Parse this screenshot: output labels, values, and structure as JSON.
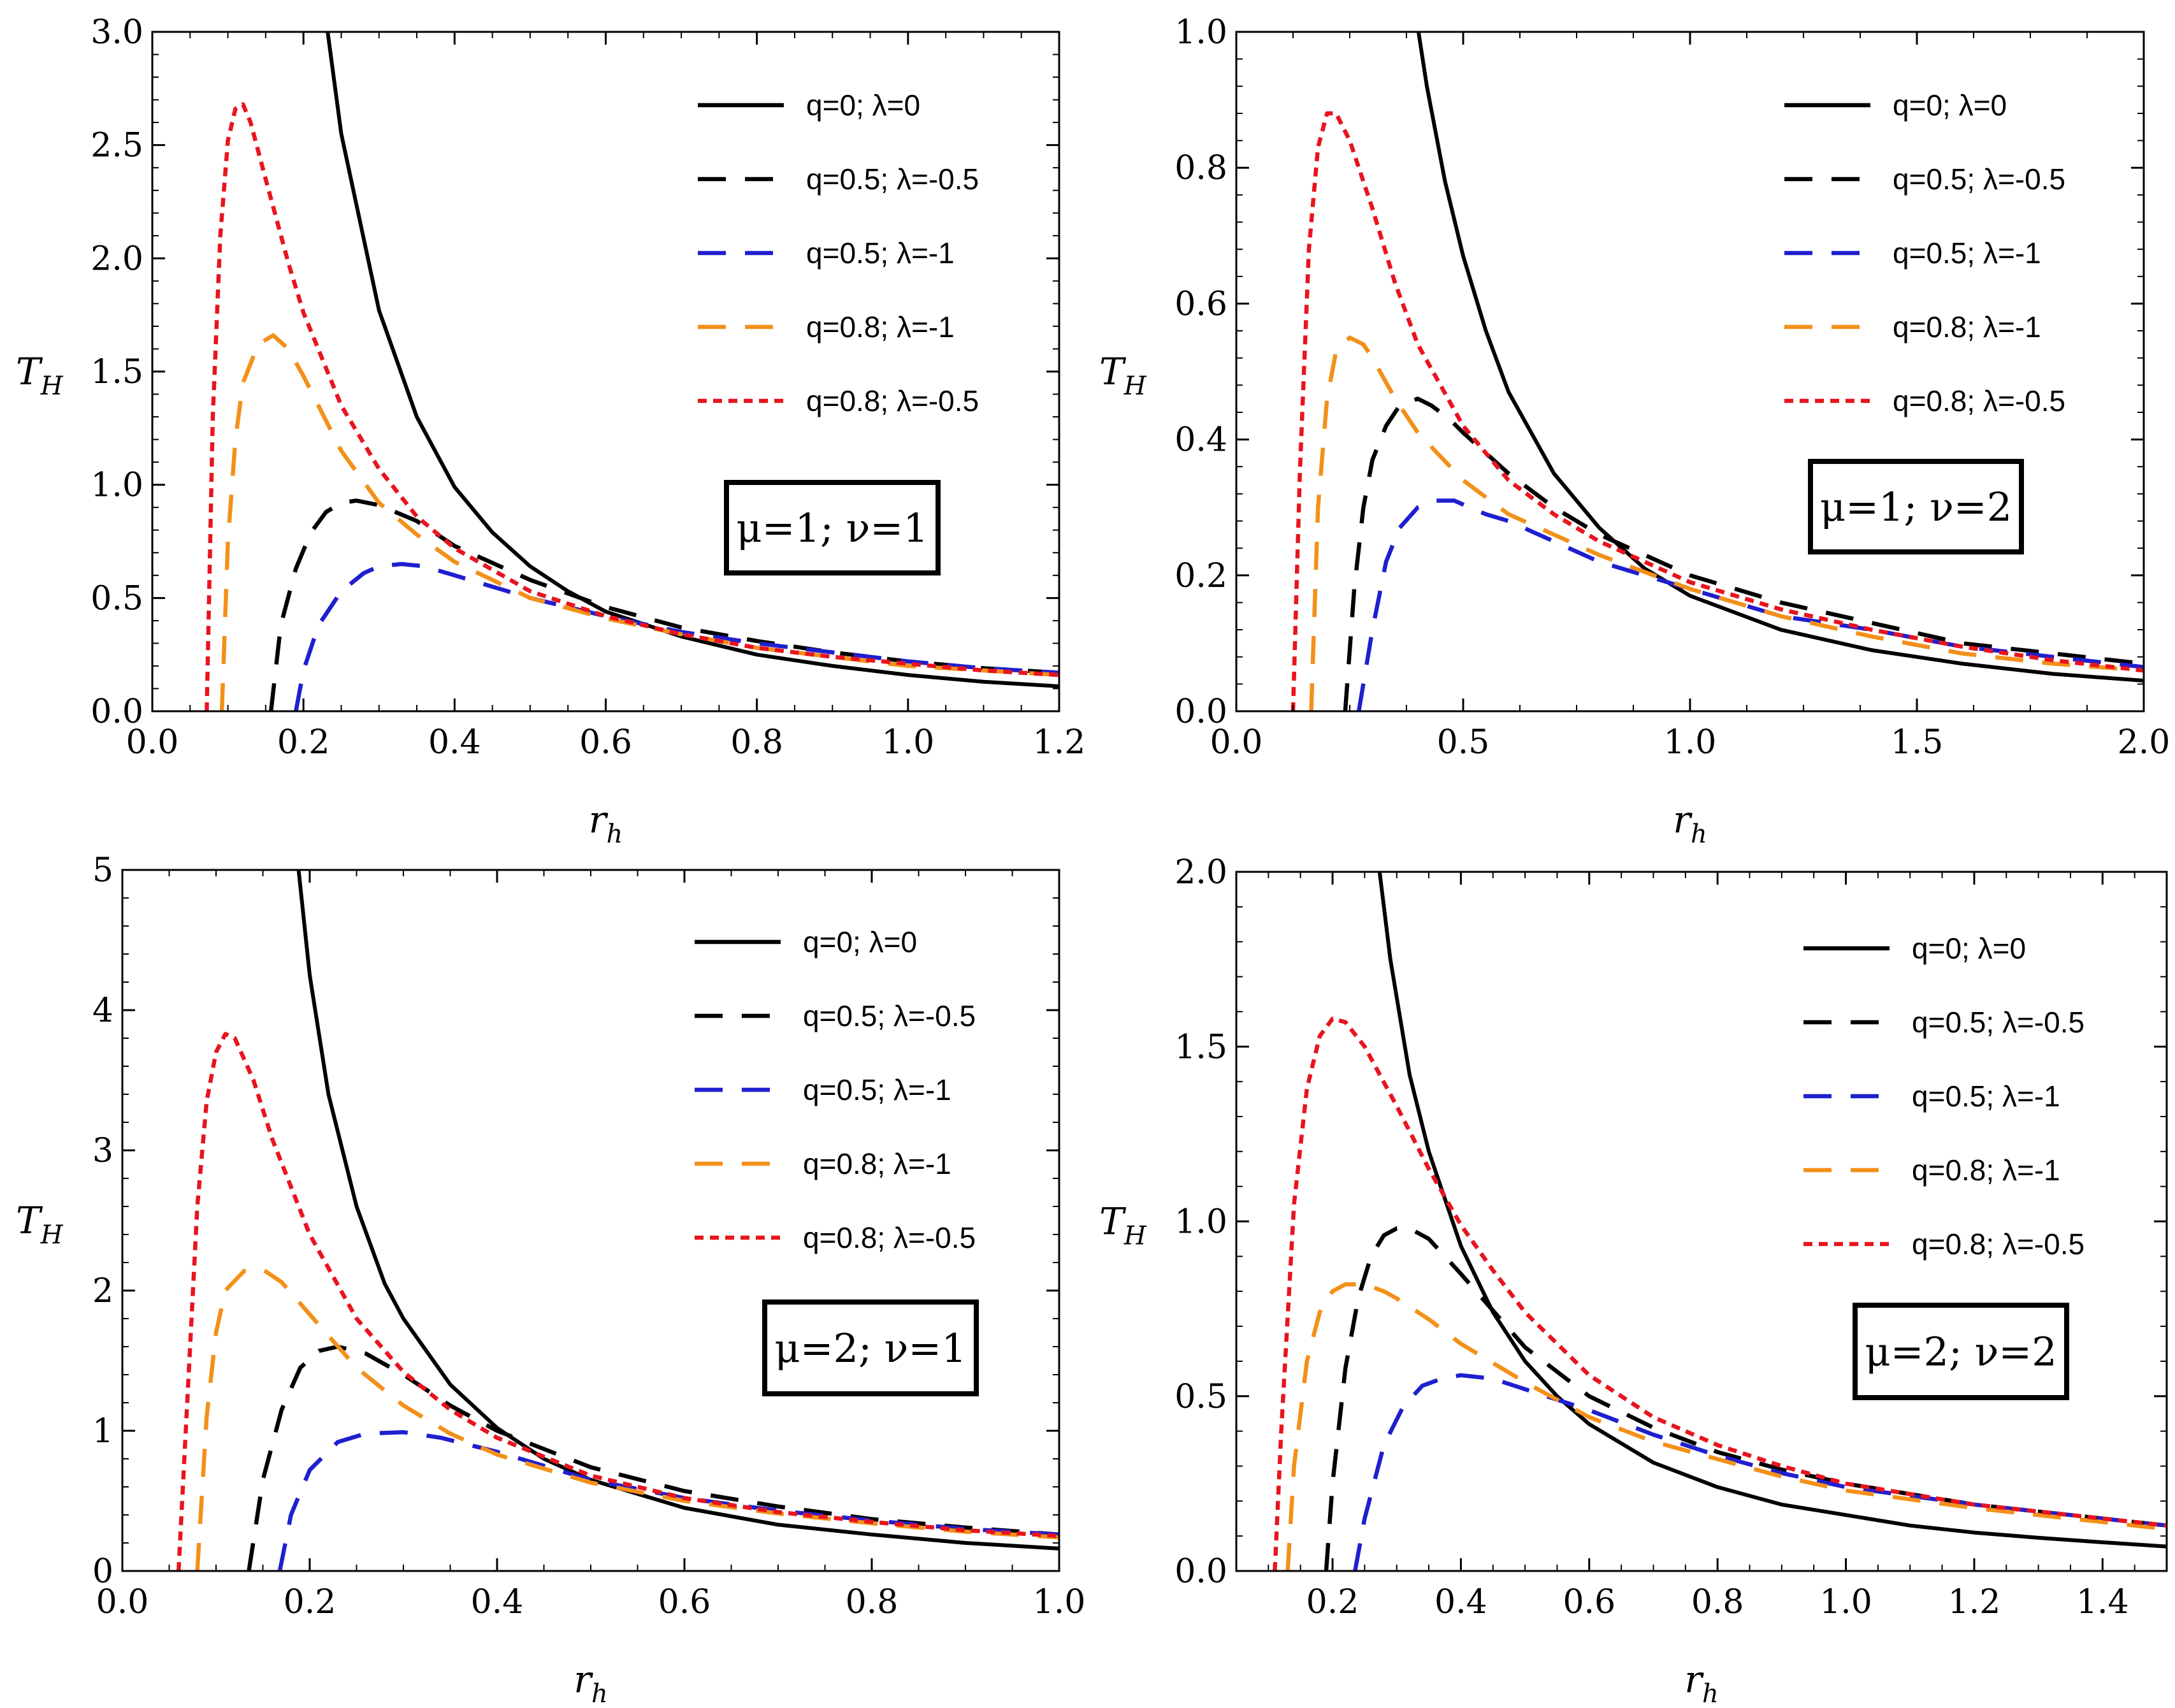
{
  "colors": {
    "black_solid": "#000000",
    "black_dash": "#000000",
    "blue_dash": "#1f1fcf",
    "orange_dash": "#f39019",
    "red_dot": "#e8141e"
  },
  "chart_data": [
    {
      "type": "line",
      "xlabel": "r",
      "xlabel_sub": "h",
      "ylabel": "T",
      "ylabel_sub": "H",
      "xlim": [
        0,
        1.2
      ],
      "ylim": [
        0,
        3.0
      ],
      "xticks": [
        "0.0",
        "0.2",
        "0.4",
        "0.6",
        "0.8",
        "1.0",
        "1.2"
      ],
      "yticks": [
        "0.0",
        "0.5",
        "1.0",
        "1.5",
        "2.0",
        "2.5",
        "3.0"
      ],
      "annotation": "μ=1; ν=1",
      "legend_position": "top-right",
      "series": [
        {
          "name": "q=0; λ=0",
          "style": "solid",
          "color": "#000000",
          "x": [
            0.22,
            0.25,
            0.3,
            0.35,
            0.4,
            0.45,
            0.5,
            0.55,
            0.6,
            0.7,
            0.8,
            0.9,
            1.0,
            1.1,
            1.2
          ],
          "y": [
            3.3,
            2.55,
            1.77,
            1.3,
            0.99,
            0.79,
            0.64,
            0.53,
            0.44,
            0.33,
            0.25,
            0.2,
            0.16,
            0.13,
            0.11
          ]
        },
        {
          "name": "q=0.5; λ=-0.5",
          "style": "dash",
          "color": "#000000",
          "x": [
            0.157,
            0.17,
            0.19,
            0.21,
            0.23,
            0.25,
            0.27,
            0.3,
            0.35,
            0.4,
            0.5,
            0.6,
            0.7,
            0.8,
            0.9,
            1.0,
            1.1,
            1.2
          ],
          "y": [
            0.0,
            0.38,
            0.63,
            0.79,
            0.88,
            0.92,
            0.93,
            0.91,
            0.84,
            0.73,
            0.58,
            0.46,
            0.37,
            0.31,
            0.26,
            0.22,
            0.19,
            0.17
          ]
        },
        {
          "name": "q=0.5; λ=-1",
          "style": "dash",
          "color": "#1f1fcf",
          "x": [
            0.19,
            0.2,
            0.22,
            0.25,
            0.28,
            0.3,
            0.33,
            0.36,
            0.4,
            0.5,
            0.6,
            0.7,
            0.8,
            0.9,
            1.0,
            1.1,
            1.2
          ],
          "y": [
            0.0,
            0.18,
            0.38,
            0.53,
            0.61,
            0.64,
            0.65,
            0.64,
            0.6,
            0.5,
            0.42,
            0.35,
            0.3,
            0.26,
            0.22,
            0.19,
            0.17
          ]
        },
        {
          "name": "q=0.8; λ=-1",
          "style": "dash",
          "color": "#f39019",
          "x": [
            0.092,
            0.1,
            0.11,
            0.12,
            0.14,
            0.16,
            0.18,
            0.2,
            0.25,
            0.3,
            0.35,
            0.4,
            0.5,
            0.6,
            0.7,
            0.8,
            0.9,
            1.0,
            1.1,
            1.2
          ],
          "y": [
            0.0,
            0.75,
            1.2,
            1.45,
            1.62,
            1.66,
            1.6,
            1.48,
            1.15,
            0.92,
            0.78,
            0.66,
            0.5,
            0.41,
            0.34,
            0.28,
            0.24,
            0.2,
            0.18,
            0.16
          ]
        },
        {
          "name": "q=0.8; λ=-0.5",
          "style": "dot",
          "color": "#e8141e",
          "x": [
            0.072,
            0.08,
            0.09,
            0.1,
            0.11,
            0.12,
            0.13,
            0.15,
            0.18,
            0.2,
            0.25,
            0.3,
            0.35,
            0.4,
            0.5,
            0.6,
            0.7,
            0.8,
            0.9,
            1.0,
            1.1,
            1.2
          ],
          "y": [
            0.0,
            1.3,
            2.1,
            2.52,
            2.66,
            2.68,
            2.6,
            2.35,
            1.98,
            1.76,
            1.35,
            1.07,
            0.86,
            0.72,
            0.53,
            0.42,
            0.34,
            0.28,
            0.24,
            0.21,
            0.18,
            0.16
          ]
        }
      ]
    },
    {
      "type": "line",
      "xlabel": "r",
      "xlabel_sub": "h",
      "ylabel": "T",
      "ylabel_sub": "H",
      "xlim": [
        0,
        2.0
      ],
      "ylim": [
        0,
        1.0
      ],
      "xticks": [
        "0.0",
        "0.5",
        "1.0",
        "1.5",
        "2.0"
      ],
      "yticks": [
        "0.0",
        "0.2",
        "0.4",
        "0.6",
        "0.8",
        "1.0"
      ],
      "annotation": "μ=1; ν=2",
      "legend_position": "top-right",
      "series": [
        {
          "name": "q=0; λ=0",
          "style": "solid",
          "color": "#000000",
          "x": [
            0.39,
            0.42,
            0.46,
            0.5,
            0.55,
            0.6,
            0.7,
            0.8,
            0.9,
            1.0,
            1.2,
            1.4,
            1.6,
            1.8,
            2.0
          ],
          "y": [
            1.05,
            0.92,
            0.78,
            0.67,
            0.56,
            0.47,
            0.35,
            0.27,
            0.21,
            0.17,
            0.12,
            0.09,
            0.07,
            0.055,
            0.045
          ]
        },
        {
          "name": "q=0.5; λ=-0.5",
          "style": "dash",
          "color": "#000000",
          "x": [
            0.24,
            0.26,
            0.28,
            0.3,
            0.33,
            0.36,
            0.4,
            0.43,
            0.47,
            0.5,
            0.6,
            0.7,
            0.8,
            1.0,
            1.2,
            1.4,
            1.6,
            1.8,
            2.0
          ],
          "y": [
            0.0,
            0.18,
            0.3,
            0.37,
            0.42,
            0.45,
            0.46,
            0.45,
            0.43,
            0.41,
            0.35,
            0.3,
            0.26,
            0.2,
            0.16,
            0.13,
            0.1,
            0.085,
            0.07
          ]
        },
        {
          "name": "q=0.5; λ=-1",
          "style": "dash",
          "color": "#1f1fcf",
          "x": [
            0.27,
            0.3,
            0.33,
            0.36,
            0.4,
            0.44,
            0.48,
            0.55,
            0.6,
            0.7,
            0.8,
            1.0,
            1.2,
            1.4,
            1.6,
            1.8,
            2.0
          ],
          "y": [
            0.0,
            0.12,
            0.22,
            0.27,
            0.3,
            0.31,
            0.31,
            0.29,
            0.28,
            0.25,
            0.22,
            0.18,
            0.14,
            0.12,
            0.095,
            0.08,
            0.065
          ]
        },
        {
          "name": "q=0.8; λ=-1",
          "style": "dash",
          "color": "#f39019",
          "x": [
            0.165,
            0.18,
            0.2,
            0.22,
            0.25,
            0.28,
            0.3,
            0.35,
            0.4,
            0.5,
            0.6,
            0.7,
            0.8,
            1.0,
            1.2,
            1.4,
            1.6,
            1.8,
            2.0
          ],
          "y": [
            0.0,
            0.3,
            0.46,
            0.53,
            0.55,
            0.54,
            0.52,
            0.46,
            0.41,
            0.34,
            0.29,
            0.26,
            0.23,
            0.18,
            0.14,
            0.11,
            0.085,
            0.07,
            0.06
          ]
        },
        {
          "name": "q=0.8; λ=-0.5",
          "style": "dot",
          "color": "#e8141e",
          "x": [
            0.125,
            0.14,
            0.16,
            0.18,
            0.2,
            0.22,
            0.25,
            0.3,
            0.35,
            0.4,
            0.5,
            0.6,
            0.7,
            0.8,
            1.0,
            1.2,
            1.4,
            1.6,
            1.8,
            2.0
          ],
          "y": [
            0.0,
            0.35,
            0.68,
            0.83,
            0.88,
            0.88,
            0.84,
            0.74,
            0.63,
            0.54,
            0.42,
            0.34,
            0.29,
            0.25,
            0.19,
            0.15,
            0.12,
            0.095,
            0.075,
            0.06
          ]
        }
      ]
    },
    {
      "type": "line",
      "xlabel": "r",
      "xlabel_sub": "h",
      "ylabel": "T",
      "ylabel_sub": "H",
      "xlim": [
        0,
        1.0
      ],
      "ylim": [
        0,
        5
      ],
      "xticks": [
        "0.0",
        "0.2",
        "0.4",
        "0.6",
        "0.8",
        "1.0"
      ],
      "yticks": [
        "0",
        "1",
        "2",
        "3",
        "4",
        "5"
      ],
      "annotation": "μ=2; ν=1",
      "legend_position": "top-right",
      "series": [
        {
          "name": "q=0; λ=0",
          "style": "solid",
          "color": "#000000",
          "x": [
            0.185,
            0.2,
            0.22,
            0.25,
            0.28,
            0.3,
            0.35,
            0.4,
            0.45,
            0.5,
            0.6,
            0.7,
            0.8,
            0.9,
            1.0
          ],
          "y": [
            5.2,
            4.25,
            3.4,
            2.6,
            2.05,
            1.8,
            1.33,
            1.02,
            0.8,
            0.65,
            0.45,
            0.33,
            0.26,
            0.2,
            0.16
          ]
        },
        {
          "name": "q=0.5; λ=-0.5",
          "style": "dash",
          "color": "#000000",
          "x": [
            0.135,
            0.15,
            0.17,
            0.19,
            0.21,
            0.23,
            0.26,
            0.3,
            0.35,
            0.4,
            0.5,
            0.6,
            0.7,
            0.8,
            0.9,
            1.0
          ],
          "y": [
            0.0,
            0.65,
            1.15,
            1.45,
            1.57,
            1.6,
            1.55,
            1.4,
            1.18,
            1.0,
            0.74,
            0.57,
            0.46,
            0.37,
            0.31,
            0.26
          ]
        },
        {
          "name": "q=0.5; λ=-1",
          "style": "dash",
          "color": "#1f1fcf",
          "x": [
            0.168,
            0.18,
            0.2,
            0.23,
            0.26,
            0.3,
            0.34,
            0.4,
            0.5,
            0.6,
            0.7,
            0.8,
            0.9,
            1.0
          ],
          "y": [
            0.0,
            0.4,
            0.72,
            0.92,
            0.98,
            0.99,
            0.95,
            0.85,
            0.65,
            0.52,
            0.43,
            0.36,
            0.3,
            0.26
          ]
        },
        {
          "name": "q=0.8; λ=-1",
          "style": "dash",
          "color": "#f39019",
          "x": [
            0.08,
            0.09,
            0.1,
            0.11,
            0.13,
            0.15,
            0.17,
            0.2,
            0.25,
            0.3,
            0.35,
            0.4,
            0.5,
            0.6,
            0.7,
            0.8,
            0.9,
            1.0
          ],
          "y": [
            0.0,
            1.1,
            1.7,
            2.0,
            2.14,
            2.15,
            2.06,
            1.83,
            1.45,
            1.18,
            0.98,
            0.83,
            0.63,
            0.5,
            0.41,
            0.34,
            0.28,
            0.24
          ]
        },
        {
          "name": "q=0.8; λ=-0.5",
          "style": "dot",
          "color": "#e8141e",
          "x": [
            0.06,
            0.07,
            0.08,
            0.09,
            0.1,
            0.11,
            0.12,
            0.14,
            0.16,
            0.2,
            0.25,
            0.3,
            0.35,
            0.4,
            0.5,
            0.6,
            0.7,
            0.8,
            0.9,
            1.0
          ],
          "y": [
            0.0,
            1.3,
            2.6,
            3.35,
            3.7,
            3.83,
            3.8,
            3.5,
            3.08,
            2.4,
            1.8,
            1.42,
            1.15,
            0.95,
            0.68,
            0.52,
            0.42,
            0.35,
            0.29,
            0.25
          ]
        }
      ]
    },
    {
      "type": "line",
      "xlabel": "r",
      "xlabel_sub": "h",
      "ylabel": "T",
      "ylabel_sub": "H",
      "xlim": [
        0.05,
        1.5
      ],
      "ylim": [
        0,
        2.0
      ],
      "xticks": [
        "0.2",
        "0.4",
        "0.6",
        "0.8",
        "1.0",
        "1.2",
        "1.4"
      ],
      "xtick_values": [
        0.2,
        0.4,
        0.6,
        0.8,
        1.0,
        1.2,
        1.4
      ],
      "yticks": [
        "0.0",
        "0.5",
        "1.0",
        "1.5",
        "2.0"
      ],
      "annotation": "μ=2; ν=2",
      "legend_position": "top-right",
      "series": [
        {
          "name": "q=0; λ=0",
          "style": "solid",
          "color": "#000000",
          "x": [
            0.27,
            0.29,
            0.32,
            0.35,
            0.4,
            0.45,
            0.5,
            0.55,
            0.6,
            0.7,
            0.8,
            0.9,
            1.0,
            1.1,
            1.2,
            1.3,
            1.4,
            1.5
          ],
          "y": [
            2.05,
            1.75,
            1.42,
            1.2,
            0.93,
            0.74,
            0.6,
            0.5,
            0.42,
            0.31,
            0.24,
            0.19,
            0.16,
            0.13,
            0.11,
            0.095,
            0.082,
            0.07
          ]
        },
        {
          "name": "q=0.5; λ=-0.5",
          "style": "dash",
          "color": "#000000",
          "x": [
            0.19,
            0.2,
            0.22,
            0.24,
            0.26,
            0.28,
            0.3,
            0.32,
            0.35,
            0.4,
            0.5,
            0.6,
            0.7,
            0.8,
            0.9,
            1.0,
            1.2,
            1.4,
            1.5
          ],
          "y": [
            0.0,
            0.25,
            0.58,
            0.78,
            0.9,
            0.96,
            0.98,
            0.98,
            0.95,
            0.85,
            0.64,
            0.5,
            0.41,
            0.34,
            0.29,
            0.25,
            0.19,
            0.15,
            0.13
          ]
        },
        {
          "name": "q=0.5; λ=-1",
          "style": "dash",
          "color": "#1f1fcf",
          "x": [
            0.235,
            0.25,
            0.28,
            0.31,
            0.34,
            0.37,
            0.4,
            0.45,
            0.5,
            0.6,
            0.7,
            0.8,
            0.9,
            1.0,
            1.2,
            1.4,
            1.5
          ],
          "y": [
            0.0,
            0.15,
            0.36,
            0.47,
            0.53,
            0.55,
            0.56,
            0.55,
            0.52,
            0.46,
            0.39,
            0.33,
            0.28,
            0.24,
            0.19,
            0.15,
            0.13
          ]
        },
        {
          "name": "q=0.8; λ=-1",
          "style": "dash",
          "color": "#f39019",
          "x": [
            0.13,
            0.14,
            0.16,
            0.18,
            0.2,
            0.22,
            0.25,
            0.28,
            0.3,
            0.35,
            0.4,
            0.5,
            0.6,
            0.7,
            0.8,
            0.9,
            1.0,
            1.2,
            1.4,
            1.5
          ],
          "y": [
            0.0,
            0.3,
            0.6,
            0.74,
            0.8,
            0.82,
            0.82,
            0.8,
            0.78,
            0.72,
            0.65,
            0.54,
            0.44,
            0.37,
            0.32,
            0.27,
            0.23,
            0.18,
            0.14,
            0.12
          ]
        },
        {
          "name": "q=0.8; λ=-0.5",
          "style": "dot",
          "color": "#e8141e",
          "x": [
            0.11,
            0.12,
            0.14,
            0.16,
            0.18,
            0.2,
            0.22,
            0.25,
            0.3,
            0.35,
            0.4,
            0.45,
            0.5,
            0.6,
            0.7,
            0.8,
            0.9,
            1.0,
            1.2,
            1.4,
            1.5
          ],
          "y": [
            0.0,
            0.4,
            1.05,
            1.38,
            1.53,
            1.58,
            1.57,
            1.5,
            1.33,
            1.15,
            0.99,
            0.86,
            0.74,
            0.56,
            0.44,
            0.36,
            0.3,
            0.25,
            0.19,
            0.15,
            0.13
          ]
        }
      ]
    }
  ]
}
